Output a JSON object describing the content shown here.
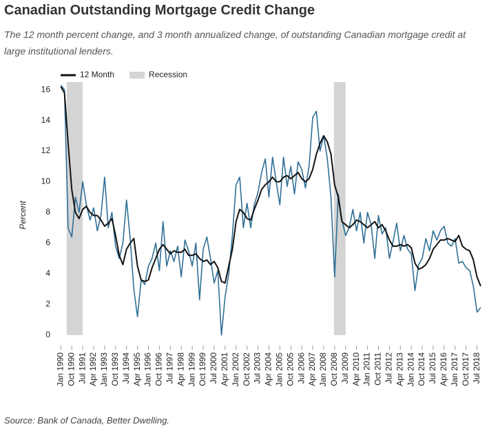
{
  "chart_data": {
    "type": "line",
    "title": "Canadian Outstanding Mortgage Credit Change",
    "subtitle": "The 12 month percent change, and 3 month annualized change, of outstanding Canadian mortgage credit at large institutional lenders.",
    "source": "Source: Bank of Canada, Better Dwelling.",
    "y_label": "Percent",
    "x": [
      1990,
      1990.25,
      1990.5,
      1990.75,
      1991,
      1991.25,
      1991.5,
      1991.75,
      1992,
      1992.25,
      1992.5,
      1992.75,
      1993,
      1993.25,
      1993.5,
      1993.75,
      1994,
      1994.25,
      1994.5,
      1994.75,
      1995,
      1995.25,
      1995.5,
      1995.75,
      1996,
      1996.25,
      1996.5,
      1996.75,
      1997,
      1997.25,
      1997.5,
      1997.75,
      1998,
      1998.25,
      1998.5,
      1998.75,
      1999,
      1999.25,
      1999.5,
      1999.75,
      2000,
      2000.25,
      2000.5,
      2000.75,
      2001,
      2001.25,
      2001.5,
      2001.75,
      2002,
      2002.25,
      2002.5,
      2002.75,
      2003,
      2003.25,
      2003.5,
      2003.75,
      2004,
      2004.25,
      2004.5,
      2004.75,
      2005,
      2005.25,
      2005.5,
      2005.75,
      2006,
      2006.25,
      2006.5,
      2006.75,
      2007,
      2007.25,
      2007.5,
      2007.75,
      2008,
      2008.25,
      2008.5,
      2008.75,
      2009,
      2009.25,
      2009.5,
      2009.75,
      2010,
      2010.25,
      2010.5,
      2010.75,
      2011,
      2011.25,
      2011.5,
      2011.75,
      2012,
      2012.25,
      2012.5,
      2012.75,
      2013,
      2013.25,
      2013.5,
      2013.75,
      2014,
      2014.25,
      2014.5,
      2014.75,
      2015,
      2015.25,
      2015.5,
      2015.75,
      2016,
      2016.25,
      2016.5,
      2016.75,
      2017,
      2017.25,
      2017.5,
      2017.75,
      2018,
      2018.25,
      2018.5,
      2018.75
    ],
    "series": [
      {
        "name": "12 Month",
        "color": "#111111",
        "width": 2,
        "values": [
          16.2,
          15.8,
          12.5,
          9.5,
          8.0,
          7.6,
          8.2,
          8.4,
          8.0,
          7.8,
          7.8,
          7.5,
          7.1,
          7.3,
          7.6,
          6.5,
          5.2,
          4.6,
          5.6,
          6.0,
          6.3,
          4.5,
          3.6,
          3.5,
          3.6,
          4.4,
          5.0,
          5.6,
          5.9,
          5.6,
          5.3,
          5.5,
          5.4,
          5.4,
          5.6,
          5.2,
          5.2,
          5.3,
          5.0,
          4.8,
          4.9,
          4.6,
          4.8,
          4.4,
          3.5,
          3.4,
          4.5,
          5.6,
          7.4,
          8.2,
          8.0,
          7.6,
          7.5,
          8.2,
          8.8,
          9.5,
          9.8,
          10.0,
          10.3,
          10.0,
          10.0,
          10.3,
          10.4,
          10.2,
          10.4,
          10.6,
          10.2,
          10.0,
          10.2,
          10.8,
          11.8,
          12.5,
          13.0,
          12.6,
          11.8,
          9.8,
          9.0,
          7.4,
          7.2,
          7.0,
          7.2,
          7.5,
          7.4,
          7.2,
          7.0,
          7.2,
          7.4,
          7.0,
          7.2,
          6.8,
          6.2,
          5.8,
          5.8,
          5.9,
          5.8,
          5.9,
          5.7,
          4.7,
          4.3,
          4.4,
          4.6,
          5.0,
          5.6,
          5.9,
          6.2,
          6.2,
          6.3,
          6.2,
          6.1,
          6.5,
          5.8,
          5.6,
          5.5,
          4.9,
          3.8,
          3.2
        ]
      },
      {
        "color": "#2f6f95",
        "width": 1.6,
        "values": [
          16.3,
          16.0,
          7.0,
          6.4,
          9.0,
          8.0,
          10.0,
          8.5,
          7.5,
          8.3,
          6.8,
          7.8,
          10.3,
          7.0,
          8.0,
          5.8,
          5.0,
          6.0,
          8.8,
          6.3,
          3.0,
          1.2,
          3.6,
          3.3,
          4.5,
          5.0,
          6.0,
          4.2,
          7.4,
          4.5,
          5.5,
          4.8,
          5.8,
          3.8,
          6.2,
          5.5,
          4.5,
          6.0,
          2.3,
          5.6,
          6.4,
          5.0,
          3.4,
          4.2,
          0.0,
          2.5,
          4.0,
          6.5,
          9.8,
          10.3,
          7.0,
          8.6,
          7.0,
          8.5,
          9.3,
          10.6,
          11.5,
          9.0,
          11.6,
          10.0,
          8.5,
          11.6,
          9.7,
          11.0,
          9.2,
          11.3,
          10.8,
          9.6,
          11.0,
          14.2,
          14.6,
          12.0,
          13.0,
          11.5,
          9.0,
          3.8,
          9.2,
          7.5,
          6.5,
          7.0,
          8.2,
          6.8,
          8.0,
          6.0,
          8.0,
          7.2,
          5.0,
          7.8,
          6.6,
          7.0,
          5.0,
          6.1,
          7.3,
          5.5,
          6.5,
          5.6,
          5.3,
          2.9,
          4.6,
          5.0,
          6.3,
          5.5,
          6.8,
          6.2,
          6.8,
          7.1,
          6.0,
          5.8,
          6.3,
          4.7,
          4.8,
          4.4,
          4.2,
          3.2,
          1.5,
          1.8
        ]
      }
    ],
    "recession": {
      "name": "Recession",
      "color": "#d4d4d4",
      "spans": [
        [
          1990.4,
          1991.5
        ],
        [
          2008.7,
          2009.5
        ]
      ]
    },
    "xlim": [
      1989.75,
      2018.85
    ],
    "xticks": [
      {
        "value": 1990,
        "label": "Jan 1990"
      },
      {
        "value": 1990.75,
        "label": "Oct 1990"
      },
      {
        "value": 1991.5,
        "label": "Jul 1991"
      },
      {
        "value": 1992.25,
        "label": "Apr 1992"
      },
      {
        "value": 1993,
        "label": "Jan 1993"
      },
      {
        "value": 1993.75,
        "label": "Oct 1993"
      },
      {
        "value": 1994.5,
        "label": "Jul 1994"
      },
      {
        "value": 1995.25,
        "label": "Apr 1995"
      },
      {
        "value": 1996,
        "label": "Jan 1996"
      },
      {
        "value": 1996.75,
        "label": "Oct 1996"
      },
      {
        "value": 1997.5,
        "label": "Jul 1997"
      },
      {
        "value": 1998.25,
        "label": "Apr 1998"
      },
      {
        "value": 1999,
        "label": "Jan 1999"
      },
      {
        "value": 1999.75,
        "label": "Oct 1999"
      },
      {
        "value": 2000.5,
        "label": "Jul 2000"
      },
      {
        "value": 2001.25,
        "label": "Apr 2001"
      },
      {
        "value": 2002,
        "label": "Jan 2002"
      },
      {
        "value": 2002.75,
        "label": "Oct 2002"
      },
      {
        "value": 2003.5,
        "label": "Jul 2003"
      },
      {
        "value": 2004.25,
        "label": "Apr 2004"
      },
      {
        "value": 2005,
        "label": "Jan 2005"
      },
      {
        "value": 2005.75,
        "label": "Oct 2005"
      },
      {
        "value": 2006.5,
        "label": "Jul 2006"
      },
      {
        "value": 2007.25,
        "label": "Apr 2007"
      },
      {
        "value": 2008,
        "label": "Jan 2008"
      },
      {
        "value": 2008.75,
        "label": "Oct 2008"
      },
      {
        "value": 2009.5,
        "label": "Jul 2009"
      },
      {
        "value": 2010.25,
        "label": "Apr 2010"
      },
      {
        "value": 2011,
        "label": "Jan 2011"
      },
      {
        "value": 2011.75,
        "label": "Oct 2011"
      },
      {
        "value": 2012.5,
        "label": "Jul 2012"
      },
      {
        "value": 2013.25,
        "label": "Apr 2013"
      },
      {
        "value": 2014,
        "label": "Jan 2014"
      },
      {
        "value": 2014.75,
        "label": "Oct 2014"
      },
      {
        "value": 2015.5,
        "label": "Jul 2015"
      },
      {
        "value": 2016.25,
        "label": "Apr 2016"
      },
      {
        "value": 2017,
        "label": "Jan 2017"
      },
      {
        "value": 2017.75,
        "label": "Oct 2017"
      },
      {
        "value": 2018.5,
        "label": "Jul 2018"
      }
    ],
    "ylim": [
      -0.5,
      16.5
    ],
    "yticks": [
      0,
      2,
      4,
      6,
      8,
      10,
      12,
      14,
      16
    ],
    "grid": false
  }
}
